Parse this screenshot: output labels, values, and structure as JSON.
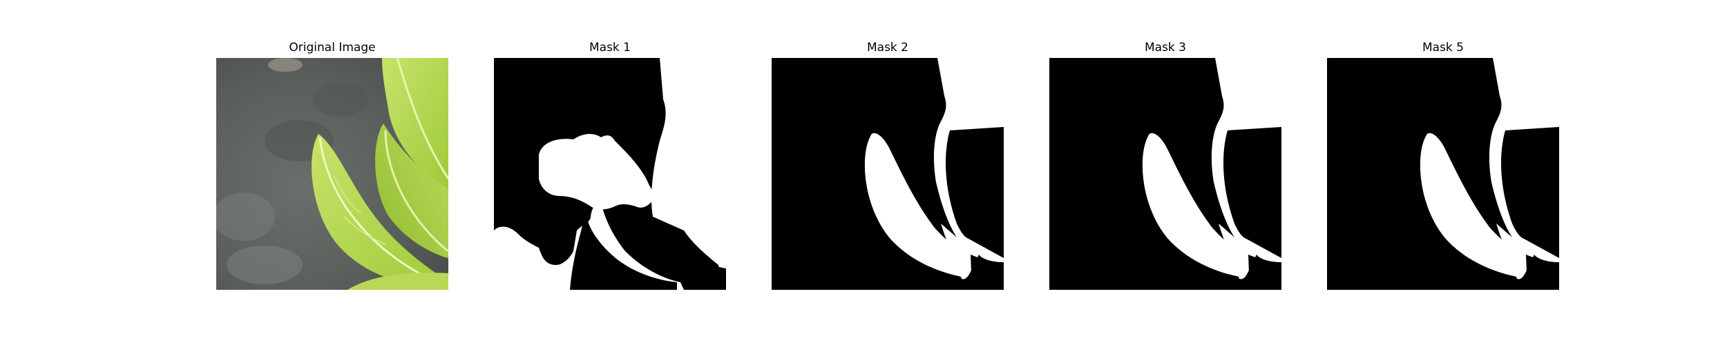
{
  "panels": [
    {
      "title": "Original Image"
    },
    {
      "title": "Mask 1"
    },
    {
      "title": "Mask 2"
    },
    {
      "title": "Mask 3"
    },
    {
      "title": "Mask 5"
    }
  ],
  "colors": {
    "background": "#ffffff",
    "mask_fill": "#000000",
    "mask_object": "#ffffff",
    "photo_background": "#5e625f",
    "leaf_light": "#c9e56a",
    "leaf_dark": "#8fbf2e"
  }
}
